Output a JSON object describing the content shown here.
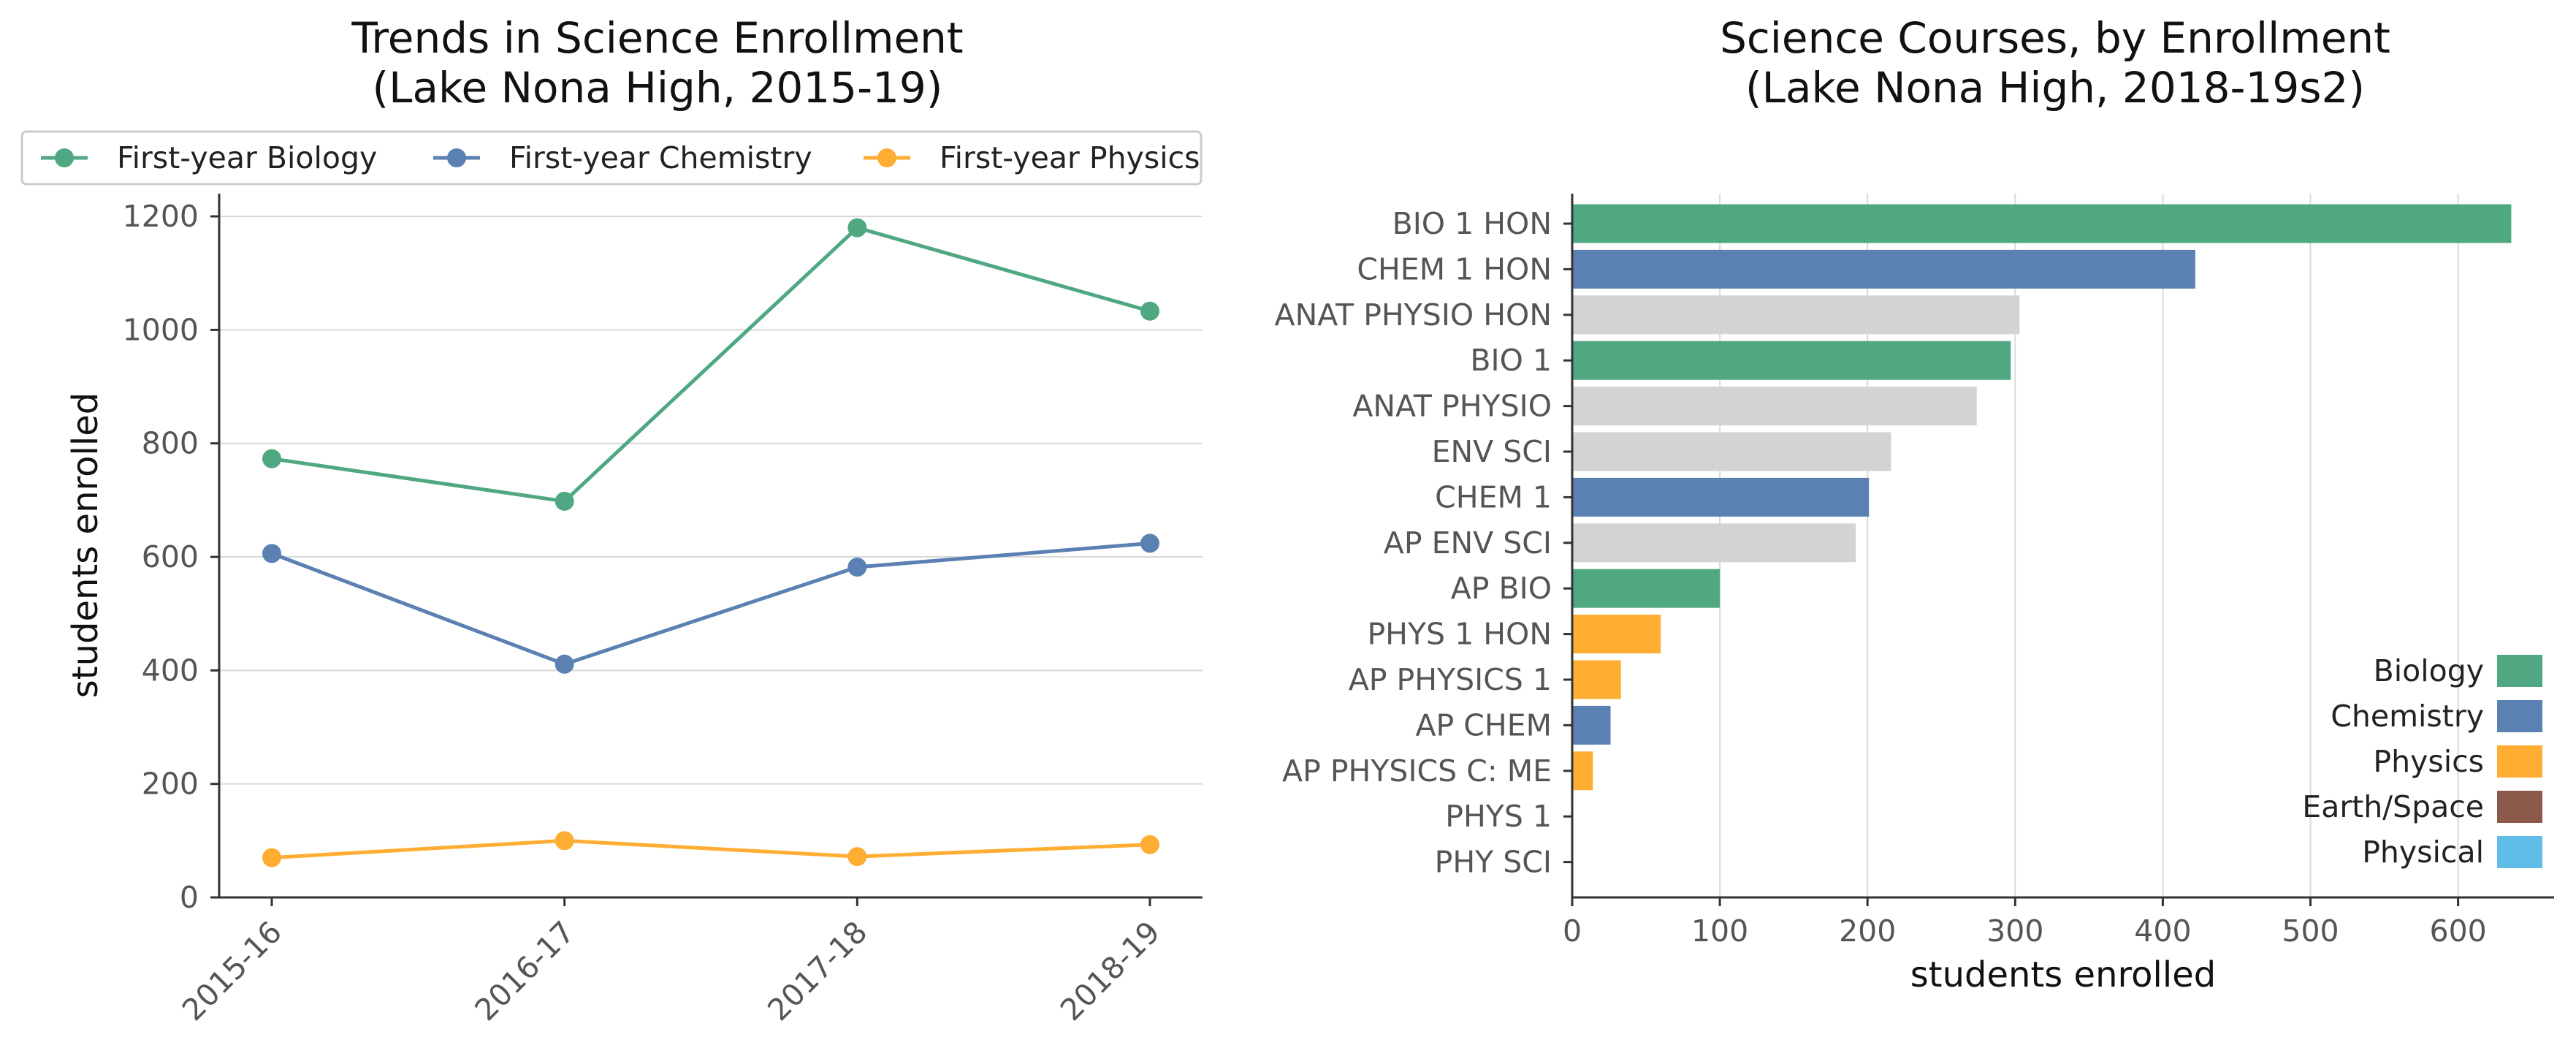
{
  "chart_data": [
    {
      "type": "line",
      "title": "Trends in Science Enrollment",
      "subtitle": "(Lake Nona High, 2015-19)",
      "xlabel": "",
      "ylabel": "students enrolled",
      "categories": [
        "2015-16",
        "2016-17",
        "2017-18",
        "2018-19"
      ],
      "ylim": [
        0,
        1240
      ],
      "yticks": [
        0,
        200,
        400,
        600,
        800,
        1000,
        1200
      ],
      "grid": "horizontal",
      "legend": "top",
      "series": [
        {
          "name": "First-year Biology",
          "color": "#4fa882",
          "values": [
            773,
            698,
            1180,
            1033
          ]
        },
        {
          "name": "First-year Chemistry",
          "color": "#5b81b3",
          "values": [
            606,
            411,
            582,
            624
          ]
        },
        {
          "name": "First-year Physics",
          "color": "#ffad33",
          "values": [
            70,
            100,
            72,
            93
          ]
        }
      ]
    },
    {
      "type": "bar",
      "orientation": "horizontal",
      "title": "Science Courses, by Enrollment",
      "subtitle": "(Lake Nona High, 2018-19s2)",
      "xlabel": "students enrolled",
      "ylabel": "",
      "xlim": [
        0,
        665
      ],
      "xticks": [
        0,
        100,
        200,
        300,
        400,
        500,
        600
      ],
      "grid": "vertical",
      "legend": "bottom-right",
      "categories": [
        "BIO 1 HON",
        "CHEM 1 HON",
        "ANAT PHYSIO HON",
        "BIO 1",
        "ANAT PHYSIO",
        "ENV SCI",
        "CHEM 1",
        "AP ENV SCI",
        "AP BIO",
        "PHYS 1 HON",
        "AP PHYSICS 1",
        "AP CHEM",
        "AP PHYSICS C: ME",
        "PHYS 1",
        "PHY SCI"
      ],
      "values": [
        636,
        422,
        303,
        297,
        274,
        216,
        201,
        192,
        100,
        60,
        33,
        26,
        14,
        0,
        0
      ],
      "groups": [
        "Biology",
        "Chemistry",
        "Other",
        "Biology",
        "Other",
        "Other",
        "Chemistry",
        "Other",
        "Biology",
        "Physics",
        "Physics",
        "Chemistry",
        "Physics",
        "Physics",
        "Physical"
      ],
      "legend_entries": [
        {
          "name": "Biology",
          "color": "#4fa882"
        },
        {
          "name": "Chemistry",
          "color": "#5b81b3"
        },
        {
          "name": "Physics",
          "color": "#ffad33"
        },
        {
          "name": "Earth/Space",
          "color": "#8b5a4a"
        },
        {
          "name": "Physical",
          "color": "#5fbde8"
        }
      ],
      "other_color": "#d3d3d3"
    }
  ]
}
